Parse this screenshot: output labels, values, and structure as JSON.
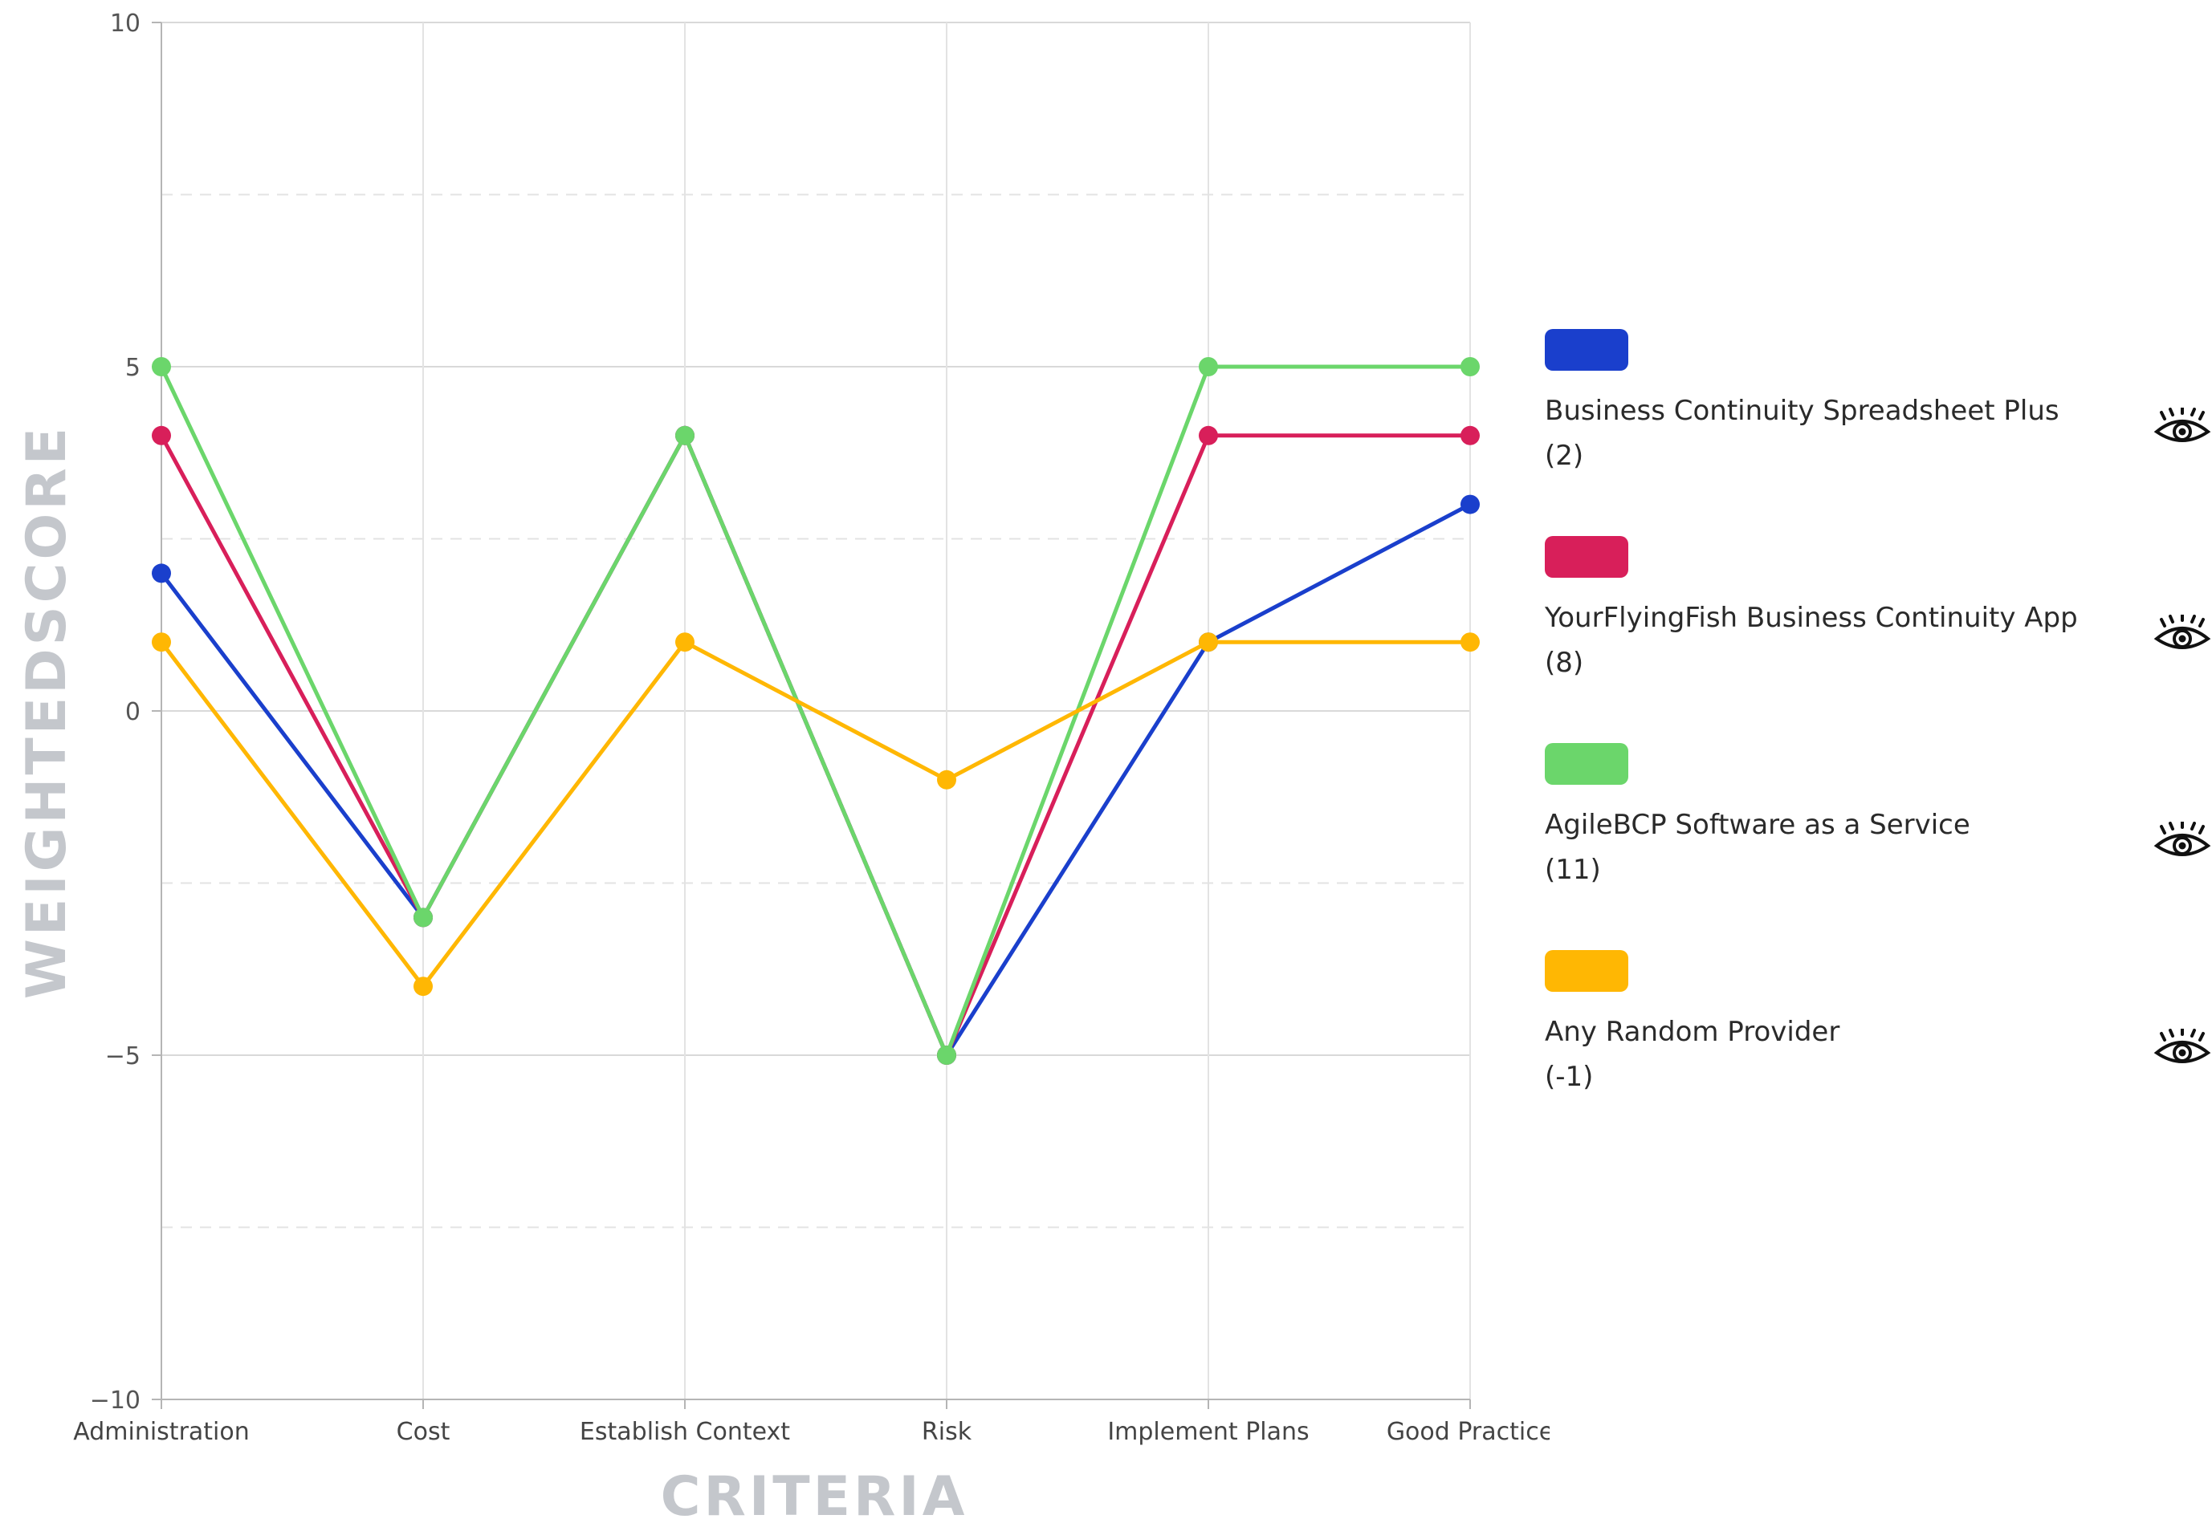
{
  "chart_data": {
    "type": "line",
    "title": "",
    "xlabel": "CRITERIA",
    "ylabel": "WEIGHTEDSCORE",
    "categories": [
      "Administration",
      "Cost",
      "Establish Context",
      "Risk",
      "Implement Plans",
      "Good Practice"
    ],
    "ylim": [
      -10,
      10
    ],
    "yticks": [
      -10,
      -5,
      0,
      5,
      10
    ],
    "yticks_labels": [
      "−10",
      "−5",
      "0",
      "5",
      "10"
    ],
    "grid": true,
    "legend_position": "right",
    "series": [
      {
        "name": "Business Continuity Spreadsheet Plus",
        "total": "(2)",
        "color": "#1a3fcc",
        "values": [
          2,
          -3,
          4,
          -5,
          1,
          3
        ]
      },
      {
        "name": "YourFlyingFish Business Continuity App",
        "total": "(8)",
        "color": "#d81f5a",
        "values": [
          4,
          -3,
          4,
          -5,
          4,
          4
        ]
      },
      {
        "name": "AgileBCP Software as a Service",
        "total": "(11)",
        "color": "#6bd66b",
        "values": [
          5,
          -3,
          4,
          -5,
          5,
          5
        ]
      },
      {
        "name": "Any Random Provider",
        "total": "(-1)",
        "color": "#ffb703",
        "values": [
          1,
          -4,
          1,
          -1,
          1,
          1
        ]
      }
    ]
  },
  "legend": {
    "toggle_icon": "eye-icon"
  }
}
